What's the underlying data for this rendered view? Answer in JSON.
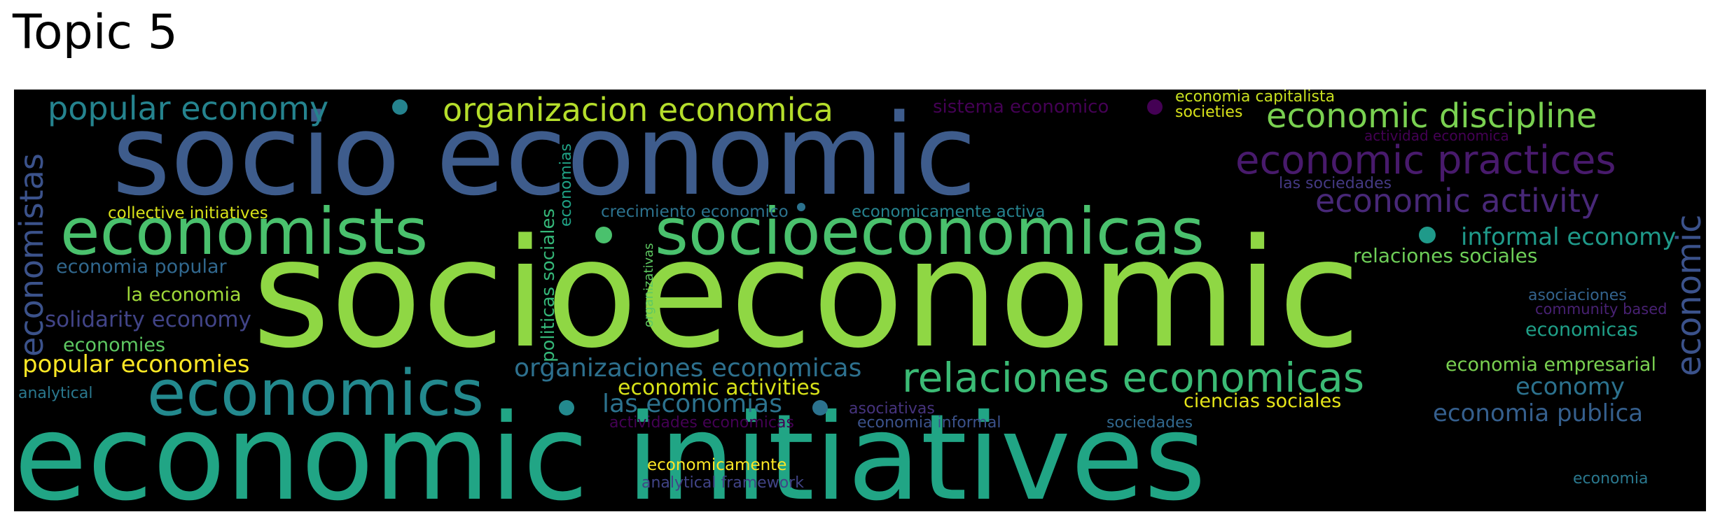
{
  "title": "Topic 5",
  "words": {
    "socioeconomic": {
      "text": "socioeconomic",
      "color": "#8fd744"
    },
    "economic_initiatives": {
      "text": "economic initiatives",
      "color": "#21a585"
    },
    "socio_economic": {
      "text": "socio economic",
      "color": "#3e5c8c"
    },
    "socioeconomicas": {
      "text": "socioeconomicas",
      "color": "#4ac16d"
    },
    "economists": {
      "text": "economists",
      "color": "#4ac16d"
    },
    "economics": {
      "text": "economics",
      "color": "#23898e"
    },
    "relaciones_economicas": {
      "text": "relaciones economicas",
      "color": "#3bbb75"
    },
    "popular_economy": {
      "text": "popular economy",
      "color": "#25838e"
    },
    "organizacion_economica": {
      "text": "organizacion economica",
      "color": "#b5de2b"
    },
    "economic_discipline": {
      "text": "economic discipline",
      "color": "#7ad151"
    },
    "economic_practices": {
      "text": "economic practices",
      "color": "#481a6c"
    },
    "economic_activity": {
      "text": "economic activity",
      "color": "#482878"
    },
    "economistas": {
      "text": "economistas",
      "color": "#3b528b"
    },
    "economic_vertical": {
      "text": "economic",
      "color": "#3b528b"
    },
    "sistema_economico": {
      "text": "sistema economico",
      "color": "#440154"
    },
    "economia_capitalista": {
      "text": "economia capitalista",
      "color": "#c8e020"
    },
    "societies": {
      "text": "societies",
      "color": "#d8e219"
    },
    "actividad_economica": {
      "text": "actividad economica",
      "color": "#440154"
    },
    "las_sociedades": {
      "text": "las sociedades",
      "color": "#443983"
    },
    "informal_economy": {
      "text": "informal economy",
      "color": "#1f9a8a"
    },
    "relaciones_sociales": {
      "text": "relaciones sociales",
      "color": "#6ece58"
    },
    "economia_popular": {
      "text": "economia popular",
      "color": "#31688e"
    },
    "la_economia": {
      "text": "la economia",
      "color": "#a0da39"
    },
    "collective_initiatives": {
      "text": "collective initiatives",
      "color": "#d8e219"
    },
    "solidarity_economy": {
      "text": "solidarity economy",
      "color": "#414487"
    },
    "economies": {
      "text": "economies",
      "color": "#5ec962"
    },
    "popular_economies": {
      "text": "popular economies",
      "color": "#fde725"
    },
    "analytical": {
      "text": "analytical",
      "color": "#2a788e"
    },
    "crecimiento_economico": {
      "text": "crecimiento economico",
      "color": "#2c728e"
    },
    "economicamente_activa": {
      "text": "economicamente activa",
      "color": "#26828e"
    },
    "politicas_sociales": {
      "text": "politicas sociales",
      "color": "#35b779"
    },
    "economias": {
      "text": "economias",
      "color": "#20a386"
    },
    "organizativas": {
      "text": "organizativas",
      "color": "#5ec962"
    },
    "organizaciones_economicas": {
      "text": "organizaciones economicas",
      "color": "#2d708e"
    },
    "economic_activities": {
      "text": "economic activities",
      "color": "#d8e219"
    },
    "las_economias": {
      "text": "las economias",
      "color": "#2c728e"
    },
    "actividades_economicas": {
      "text": "actividades economicas",
      "color": "#440154"
    },
    "asociativas": {
      "text": "asociativas",
      "color": "#46337e"
    },
    "economia_informal": {
      "text": "economia informal",
      "color": "#3b528b"
    },
    "ciencias_sociales": {
      "text": "ciencias sociales",
      "color": "#e5e419"
    },
    "sociedades": {
      "text": "sociedades",
      "color": "#31688e"
    },
    "economia_publica": {
      "text": "economia publica",
      "color": "#355f8d"
    },
    "economy": {
      "text": "economy",
      "color": "#2c728e"
    },
    "economia_empresarial": {
      "text": "economia empresarial",
      "color": "#7ad151"
    },
    "economicas": {
      "text": "economicas",
      "color": "#1fa088"
    },
    "community_based": {
      "text": "community based",
      "color": "#482173"
    },
    "asociaciones": {
      "text": "asociaciones",
      "color": "#33638d"
    },
    "economicamente": {
      "text": "economicamente",
      "color": "#fde725"
    },
    "analytical_framework": {
      "text": "analytical framework",
      "color": "#414487"
    },
    "economia": {
      "text": "economia",
      "color": "#2a788e"
    }
  }
}
